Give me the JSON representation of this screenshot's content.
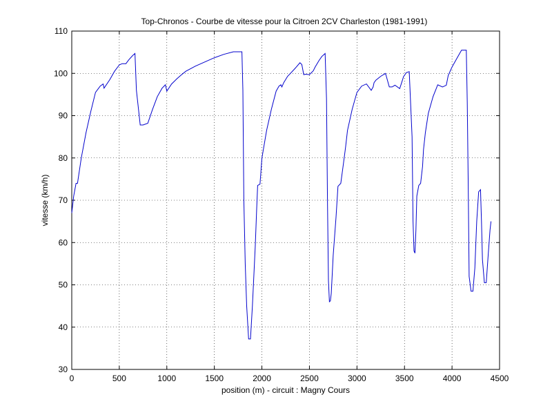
{
  "chart_data": {
    "type": "line",
    "title": "Top-Chronos - Courbe de vitesse pour la Citroen 2CV Charleston (1981-1991)",
    "xlabel": "position (m) - circuit : Magny Cours",
    "ylabel": "vitesse (km/h)",
    "xlim": [
      0,
      4500
    ],
    "ylim": [
      30,
      110
    ],
    "xticks": [
      0,
      500,
      1000,
      1500,
      2000,
      2500,
      3000,
      3500,
      4000,
      4500
    ],
    "yticks": [
      30,
      40,
      50,
      60,
      70,
      80,
      90,
      100,
      110
    ],
    "grid": true,
    "colors": {
      "line": "#0000cc",
      "axes": "#000000",
      "grid": "#000000"
    },
    "series": [
      {
        "x": [
          0,
          20,
          45,
          60,
          100,
          150,
          200,
          250,
          300,
          330,
          340,
          400,
          450,
          500,
          530,
          570,
          600,
          640,
          665,
          680,
          700,
          720,
          750,
          800,
          850,
          900,
          950,
          985,
          1000,
          1050,
          1100,
          1150,
          1200,
          1300,
          1400,
          1500,
          1600,
          1700,
          1770,
          1790,
          1800,
          1810,
          1825,
          1840,
          1860,
          1880,
          1900,
          1930,
          1945,
          1955,
          1980,
          2000,
          2050,
          2100,
          2150,
          2180,
          2200,
          2210,
          2230,
          2270,
          2300,
          2350,
          2400,
          2420,
          2440,
          2460,
          2500,
          2540,
          2560,
          2600,
          2630,
          2665,
          2680,
          2690,
          2700,
          2710,
          2720,
          2730,
          2750,
          2780,
          2800,
          2830,
          2860,
          2880,
          2900,
          2950,
          3000,
          3050,
          3100,
          3150,
          3170,
          3180,
          3200,
          3250,
          3300,
          3340,
          3350,
          3370,
          3400,
          3450,
          3470,
          3490,
          3520,
          3550,
          3580,
          3590,
          3600,
          3610,
          3620,
          3630,
          3650,
          3670,
          3690,
          3700,
          3720,
          3750,
          3800,
          3850,
          3900,
          3940,
          3960,
          4000,
          4050,
          4100,
          4150,
          4160,
          4170,
          4180,
          4200,
          4220,
          4240,
          4260,
          4280,
          4300,
          4310,
          4320,
          4340,
          4360,
          4380,
          4400,
          4410
        ],
        "values": [
          67,
          71,
          74,
          74,
          80,
          86,
          91,
          95.5,
          97,
          97.5,
          96.5,
          98.5,
          100.5,
          102,
          102.3,
          102.3,
          103.2,
          104.2,
          104.7,
          96,
          92,
          87.8,
          87.8,
          88.2,
          91.5,
          94.5,
          96.5,
          97.3,
          95.8,
          97.5,
          98.6,
          99.6,
          100.5,
          101.7,
          102.7,
          103.7,
          104.5,
          105.1,
          105.1,
          105.1,
          96,
          70,
          55,
          45,
          37.2,
          37.2,
          45,
          59,
          68,
          73.5,
          73.8,
          80,
          86.5,
          91.5,
          95.8,
          97,
          97.3,
          96.8,
          97.8,
          99.3,
          100,
          101.2,
          102.5,
          102.1,
          99.7,
          99.8,
          99.7,
          100.6,
          101.5,
          103,
          104,
          104.7,
          94,
          70,
          51,
          46,
          46.2,
          48,
          57,
          66,
          73.3,
          74,
          79,
          82.5,
          86.5,
          91.5,
          95.5,
          97,
          97.5,
          96,
          96.8,
          97.8,
          98.4,
          99.3,
          100,
          96.8,
          96.8,
          96.8,
          97.2,
          96.4,
          97.8,
          99.2,
          100.2,
          100.4,
          85,
          65,
          58,
          57.5,
          63,
          71,
          73.5,
          74,
          78,
          82,
          86,
          90.5,
          94.5,
          97.3,
          96.8,
          97.2,
          99.5,
          101.5,
          103.5,
          105.5,
          105.5,
          93,
          75,
          52,
          48.5,
          48.5,
          54,
          65,
          72,
          72.5,
          65,
          56,
          50.5,
          50.5,
          57,
          63,
          65
        ]
      }
    ]
  }
}
